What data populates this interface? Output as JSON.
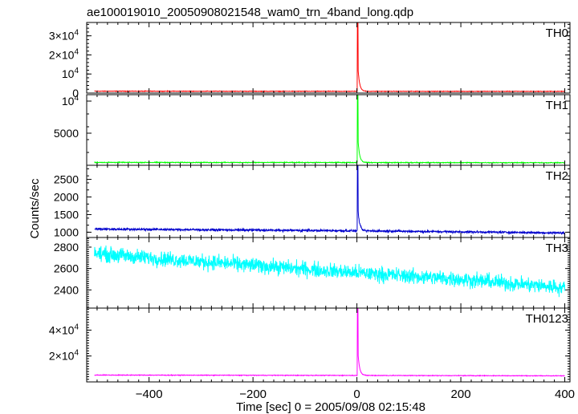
{
  "chart_data": {
    "type": "line",
    "title": "ae100019010_20050908021548_wam0_trn_4band_long.qdp",
    "xlabel": "Time [sec] 0 = 2005/09/08 02:15:48",
    "ylabel": "Counts/sec",
    "xlim": [
      -520,
      410
    ],
    "x_ticks": [
      {
        "value": -400,
        "label": "−400"
      },
      {
        "value": -200,
        "label": "−200"
      },
      {
        "value": 0,
        "label": "0"
      },
      {
        "value": 200,
        "label": "200"
      },
      {
        "value": 400,
        "label": "400"
      }
    ],
    "x_range": [
      -505,
      400
    ],
    "grid": false,
    "panels": [
      {
        "name": "TH0",
        "color": "#ff0000",
        "ylim": [
          0,
          37000
        ],
        "y_ticks": [
          {
            "value": 0,
            "label": "0"
          },
          {
            "value": 10000,
            "label": "10",
            "exp": "4"
          },
          {
            "value": 20000,
            "label": "2×10",
            "exp": "4"
          },
          {
            "value": 30000,
            "label": "3×10",
            "exp": "4"
          }
        ],
        "baseline": [
          {
            "t": -505,
            "v": 1000
          },
          {
            "t": -250,
            "v": 950
          },
          {
            "t": 0,
            "v": 920
          },
          {
            "t": 200,
            "v": 900
          },
          {
            "t": 400,
            "v": 880
          }
        ],
        "noise": 150,
        "peak": {
          "t": 2,
          "v": 37000
        }
      },
      {
        "name": "TH1",
        "color": "#00ff00",
        "ylim": [
          0,
          11000
        ],
        "y_ticks": [
          {
            "value": 5000,
            "label": "5000"
          },
          {
            "value": 10000,
            "label": "10",
            "exp": "4"
          }
        ],
        "baseline": [
          {
            "t": -505,
            "v": 450
          },
          {
            "t": 0,
            "v": 430
          },
          {
            "t": 400,
            "v": 400
          }
        ],
        "noise": 60,
        "peak": {
          "t": 2,
          "v": 11000
        }
      },
      {
        "name": "TH2",
        "color": "#0000cc",
        "ylim": [
          850,
          2900
        ],
        "y_ticks": [
          {
            "value": 1000,
            "label": "1000"
          },
          {
            "value": 1500,
            "label": "1500"
          },
          {
            "value": 2000,
            "label": "2000"
          },
          {
            "value": 2500,
            "label": "2500"
          }
        ],
        "baseline": [
          {
            "t": -505,
            "v": 1090
          },
          {
            "t": -200,
            "v": 1060
          },
          {
            "t": 0,
            "v": 1040
          },
          {
            "t": 200,
            "v": 1010
          },
          {
            "t": 400,
            "v": 980
          }
        ],
        "noise": 30,
        "peak": {
          "t": 2,
          "v": 2900
        }
      },
      {
        "name": "TH3",
        "color": "#00ffff",
        "ylim": [
          2230,
          2890
        ],
        "y_ticks": [
          {
            "value": 2400,
            "label": "2400"
          },
          {
            "value": 2600,
            "label": "2600"
          },
          {
            "value": 2800,
            "label": "2800"
          }
        ],
        "baseline": [
          {
            "t": -505,
            "v": 2740
          },
          {
            "t": -400,
            "v": 2700
          },
          {
            "t": -200,
            "v": 2630
          },
          {
            "t": 0,
            "v": 2560
          },
          {
            "t": 200,
            "v": 2500
          },
          {
            "t": 400,
            "v": 2420
          }
        ],
        "noise": 70,
        "peak": null
      },
      {
        "name": "TH0123",
        "color": "#ff00ff",
        "ylim": [
          0,
          57000
        ],
        "y_ticks": [
          {
            "value": 20000,
            "label": "2×10",
            "exp": "4"
          },
          {
            "value": 40000,
            "label": "4×10",
            "exp": "4"
          }
        ],
        "baseline": [
          {
            "t": -505,
            "v": 5300
          },
          {
            "t": 0,
            "v": 5000
          },
          {
            "t": 400,
            "v": 4700
          }
        ],
        "noise": 250,
        "peak": {
          "t": 2,
          "v": 57000
        }
      }
    ]
  }
}
